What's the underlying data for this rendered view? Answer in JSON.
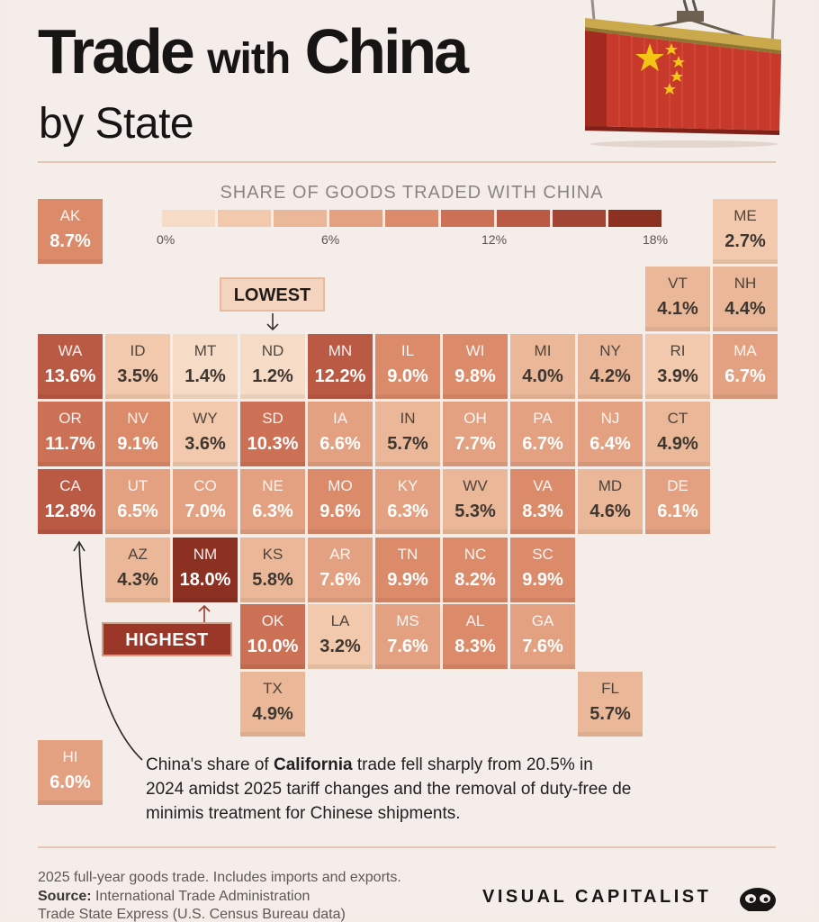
{
  "title": {
    "main_bold": "Trade",
    "main_mid": "with",
    "main_end": "China",
    "subtitle": "by State"
  },
  "legend": {
    "title": "SHARE OF GOODS TRADED WITH CHINA",
    "ticks": [
      "0%",
      "6%",
      "12%",
      "18%"
    ],
    "colors": [
      "#f6dcc6",
      "#f2c9ad",
      "#eab898",
      "#e3a181",
      "#db8a6a",
      "#cd7156",
      "#ba5944",
      "#a34534",
      "#8c3022"
    ]
  },
  "callouts": {
    "lowest": "LOWEST",
    "highest": "HIGHEST"
  },
  "note": {
    "pre": "China's share of ",
    "bold": "California",
    "post": " trade fell sharply from 20.5% in 2024 amidst 2025 tariff changes and the removal of duty-free de minimis treatment for Chinese shipments."
  },
  "footer": {
    "line1": "2025 full-year goods trade. Includes imports and exports.",
    "source_label": "Source:",
    "source_text": "International Trade Administration",
    "line3": "Trade State Express (U.S. Census Bureau data)"
  },
  "brand": "VISUAL CAPITALIST",
  "brand_icon": "visual-capitalist-logo",
  "chart_data": {
    "type": "heatmap",
    "title": "Trade with China by State",
    "legend_title": "SHARE OF GOODS TRADED WITH CHINA",
    "scale": {
      "min": 0,
      "max": 18,
      "unit": "%"
    },
    "states": [
      {
        "state": "AK",
        "value": 8.7,
        "label": "8.7%",
        "row": 0,
        "col": 0
      },
      {
        "state": "ME",
        "value": 2.7,
        "label": "2.7%",
        "row": 0,
        "col": 10
      },
      {
        "state": "VT",
        "value": 4.1,
        "label": "4.1%",
        "row": 1,
        "col": 9
      },
      {
        "state": "NH",
        "value": 4.4,
        "label": "4.4%",
        "row": 1,
        "col": 10
      },
      {
        "state": "WA",
        "value": 13.6,
        "label": "13.6%",
        "row": 2,
        "col": 0
      },
      {
        "state": "ID",
        "value": 3.5,
        "label": "3.5%",
        "row": 2,
        "col": 1
      },
      {
        "state": "MT",
        "value": 1.4,
        "label": "1.4%",
        "row": 2,
        "col": 2
      },
      {
        "state": "ND",
        "value": 1.2,
        "label": "1.2%",
        "row": 2,
        "col": 3
      },
      {
        "state": "MN",
        "value": 12.2,
        "label": "12.2%",
        "row": 2,
        "col": 4
      },
      {
        "state": "IL",
        "value": 9.0,
        "label": "9.0%",
        "row": 2,
        "col": 5
      },
      {
        "state": "WI",
        "value": 9.8,
        "label": "9.8%",
        "row": 2,
        "col": 6
      },
      {
        "state": "MI",
        "value": 4.0,
        "label": "4.0%",
        "row": 2,
        "col": 7
      },
      {
        "state": "NY",
        "value": 4.2,
        "label": "4.2%",
        "row": 2,
        "col": 8
      },
      {
        "state": "RI",
        "value": 3.9,
        "label": "3.9%",
        "row": 2,
        "col": 9
      },
      {
        "state": "MA",
        "value": 6.7,
        "label": "6.7%",
        "row": 2,
        "col": 10
      },
      {
        "state": "OR",
        "value": 11.7,
        "label": "11.7%",
        "row": 3,
        "col": 0
      },
      {
        "state": "NV",
        "value": 9.1,
        "label": "9.1%",
        "row": 3,
        "col": 1
      },
      {
        "state": "WY",
        "value": 3.6,
        "label": "3.6%",
        "row": 3,
        "col": 2
      },
      {
        "state": "SD",
        "value": 10.3,
        "label": "10.3%",
        "row": 3,
        "col": 3
      },
      {
        "state": "IA",
        "value": 6.6,
        "label": "6.6%",
        "row": 3,
        "col": 4
      },
      {
        "state": "IN",
        "value": 5.7,
        "label": "5.7%",
        "row": 3,
        "col": 5
      },
      {
        "state": "OH",
        "value": 7.7,
        "label": "7.7%",
        "row": 3,
        "col": 6
      },
      {
        "state": "PA",
        "value": 6.7,
        "label": "6.7%",
        "row": 3,
        "col": 7
      },
      {
        "state": "NJ",
        "value": 6.4,
        "label": "6.4%",
        "row": 3,
        "col": 8
      },
      {
        "state": "CT",
        "value": 4.9,
        "label": "4.9%",
        "row": 3,
        "col": 9
      },
      {
        "state": "CA",
        "value": 12.8,
        "label": "12.8%",
        "row": 4,
        "col": 0
      },
      {
        "state": "UT",
        "value": 6.5,
        "label": "6.5%",
        "row": 4,
        "col": 1
      },
      {
        "state": "CO",
        "value": 7.0,
        "label": "7.0%",
        "row": 4,
        "col": 2
      },
      {
        "state": "NE",
        "value": 6.3,
        "label": "6.3%",
        "row": 4,
        "col": 3
      },
      {
        "state": "MO",
        "value": 9.6,
        "label": "9.6%",
        "row": 4,
        "col": 4
      },
      {
        "state": "KY",
        "value": 6.3,
        "label": "6.3%",
        "row": 4,
        "col": 5
      },
      {
        "state": "WV",
        "value": 5.3,
        "label": "5.3%",
        "row": 4,
        "col": 6
      },
      {
        "state": "VA",
        "value": 8.3,
        "label": "8.3%",
        "row": 4,
        "col": 7
      },
      {
        "state": "MD",
        "value": 4.6,
        "label": "4.6%",
        "row": 4,
        "col": 8
      },
      {
        "state": "DE",
        "value": 6.1,
        "label": "6.1%",
        "row": 4,
        "col": 9
      },
      {
        "state": "AZ",
        "value": 4.3,
        "label": "4.3%",
        "row": 5,
        "col": 1
      },
      {
        "state": "NM",
        "value": 18.0,
        "label": "18.0%",
        "row": 5,
        "col": 2
      },
      {
        "state": "KS",
        "value": 5.8,
        "label": "5.8%",
        "row": 5,
        "col": 3
      },
      {
        "state": "AR",
        "value": 7.6,
        "label": "7.6%",
        "row": 5,
        "col": 4
      },
      {
        "state": "TN",
        "value": 9.9,
        "label": "9.9%",
        "row": 5,
        "col": 5
      },
      {
        "state": "NC",
        "value": 8.2,
        "label": "8.2%",
        "row": 5,
        "col": 6
      },
      {
        "state": "SC",
        "value": 9.9,
        "label": "9.9%",
        "row": 5,
        "col": 7
      },
      {
        "state": "OK",
        "value": 10.0,
        "label": "10.0%",
        "row": 6,
        "col": 3
      },
      {
        "state": "LA",
        "value": 3.2,
        "label": "3.2%",
        "row": 6,
        "col": 4
      },
      {
        "state": "MS",
        "value": 7.6,
        "label": "7.6%",
        "row": 6,
        "col": 5
      },
      {
        "state": "AL",
        "value": 8.3,
        "label": "8.3%",
        "row": 6,
        "col": 6
      },
      {
        "state": "GA",
        "value": 7.6,
        "label": "7.6%",
        "row": 6,
        "col": 7
      },
      {
        "state": "TX",
        "value": 4.9,
        "label": "4.9%",
        "row": 7,
        "col": 3
      },
      {
        "state": "FL",
        "value": 5.7,
        "label": "5.7%",
        "row": 7,
        "col": 8
      },
      {
        "state": "HI",
        "value": 6.0,
        "label": "6.0%",
        "row": 8,
        "col": 0
      }
    ]
  }
}
